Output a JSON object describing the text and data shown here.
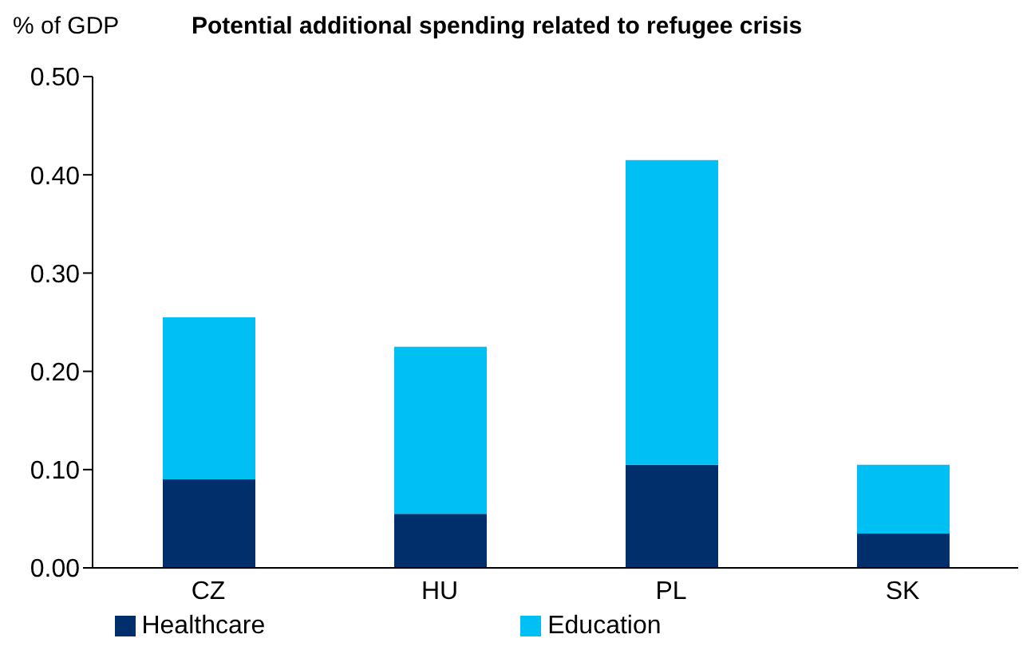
{
  "chart_data": {
    "type": "bar",
    "title": "Potential additional spending related to refugee crisis",
    "ylabel": "% of GDP",
    "categories": [
      "CZ",
      "HU",
      "PL",
      "SK"
    ],
    "stacked": true,
    "series": [
      {
        "name": "Healthcare",
        "color": "#002f6c",
        "values": [
          0.09,
          0.055,
          0.105,
          0.035
        ]
      },
      {
        "name": "Education",
        "color": "#00bff3",
        "values": [
          0.165,
          0.17,
          0.31,
          0.07
        ]
      }
    ],
    "ylim": [
      0,
      0.5
    ],
    "yticks": [
      {
        "value": 0,
        "label": "0.00"
      },
      {
        "value": 0.1,
        "label": "0.10"
      },
      {
        "value": 0.2,
        "label": "0.20"
      },
      {
        "value": 0.3,
        "label": "0.30"
      },
      {
        "value": 0.4,
        "label": "0.40"
      },
      {
        "value": 0.5,
        "label": "0.50"
      }
    ],
    "legend": "bottom"
  }
}
